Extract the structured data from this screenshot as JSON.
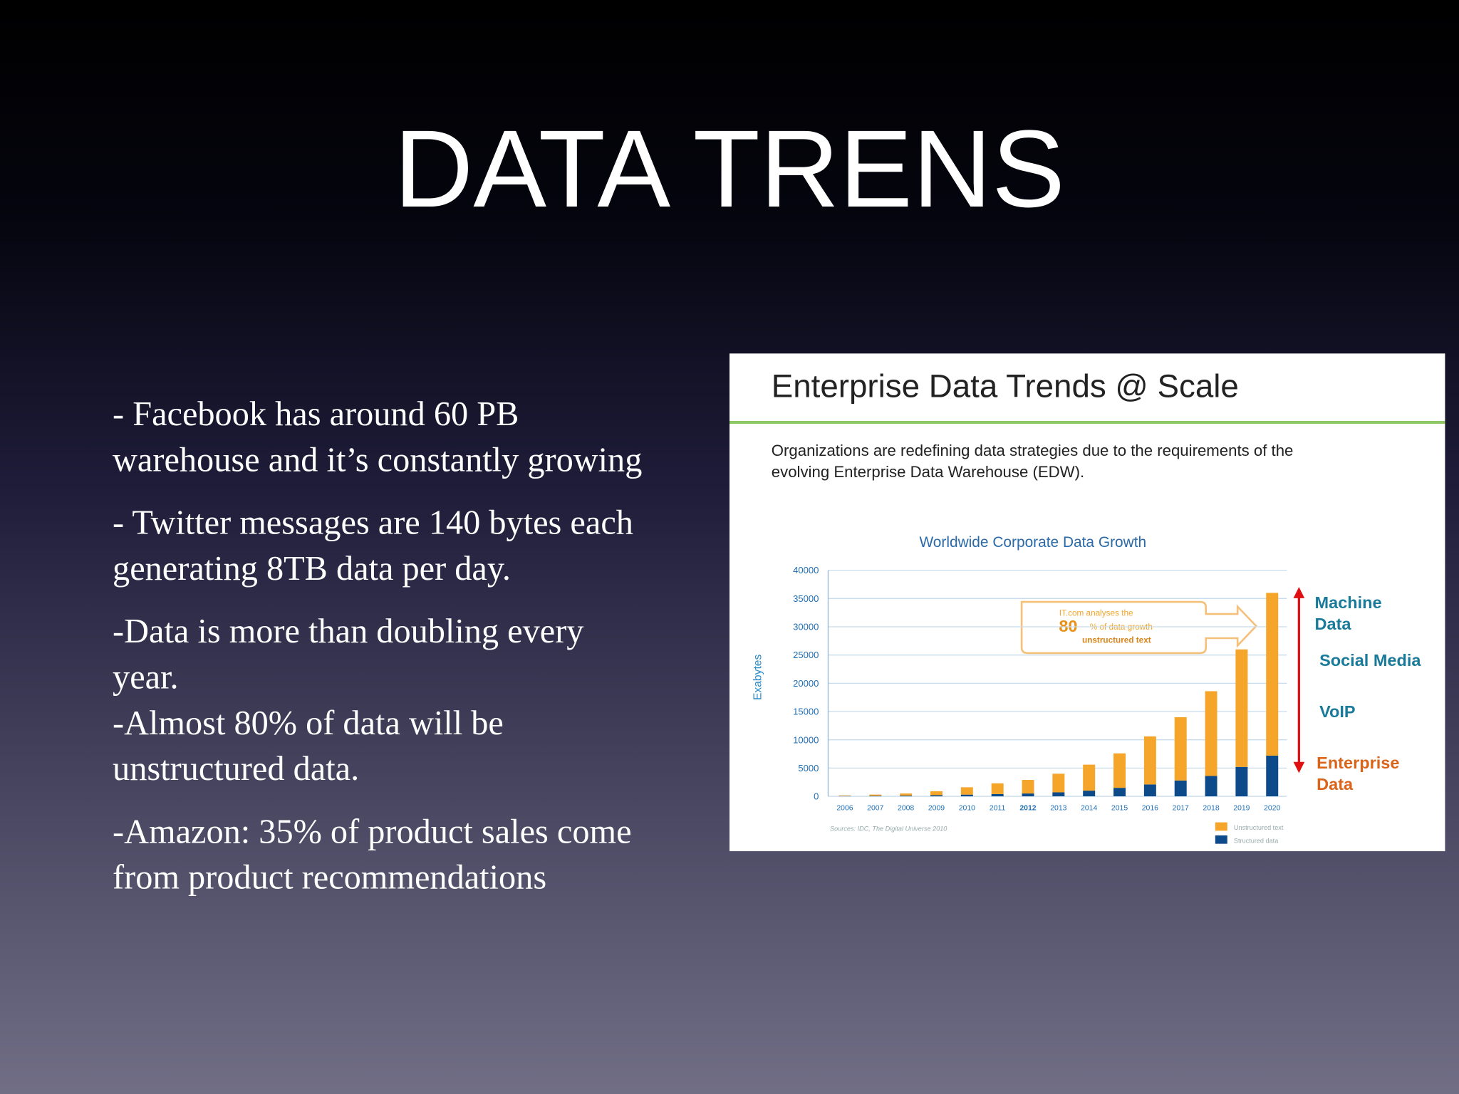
{
  "title": "DATA TRENS",
  "bullets": [
    [
      "- Facebook has around 60 PB",
      "warehouse and it’s constantly growing"
    ],
    [
      "- Twitter messages are 140 bytes each",
      "generating 8TB data per day."
    ],
    [
      "-Data is more than doubling every",
      "year.",
      "-Almost 80% of data will be",
      "unstructured data."
    ],
    [
      "-Amazon: 35% of product sales come",
      "from product recommendations"
    ]
  ],
  "figure": {
    "heading": "Enterprise Data Trends @ Scale",
    "description": [
      "Organizations are redefining data strategies due to the requirements of the",
      "evolving Enterprise Data Warehouse (EDW)."
    ],
    "annotation": [
      "IT.com analyses the",
      "80",
      "% of data growth",
      "unstructured text"
    ],
    "side_labels": [
      [
        "Machine",
        "Data"
      ],
      [
        "Social Media"
      ],
      [
        "VoIP"
      ],
      [
        "Enterprise",
        "Data"
      ]
    ]
  },
  "chart_data": {
    "type": "stacked-bar",
    "title": "Worldwide Corporate Data Growth",
    "y_label": "Exabytes",
    "source": "Sources: IDC, The Digital Universe 2010",
    "categories": [
      "2006",
      "2007",
      "2008",
      "2009",
      "2010",
      "2011",
      "2012",
      "2013",
      "2014",
      "2015",
      "2016",
      "2017",
      "2018",
      "2019",
      "2020"
    ],
    "series": [
      {
        "name": "Structured data",
        "color": "#0d4a8a",
        "values": [
          50,
          80,
          120,
          200,
          300,
          400,
          500,
          700,
          1000,
          1500,
          2100,
          2800,
          3600,
          5200,
          7200
        ]
      },
      {
        "name": "Unstructured text",
        "color": "#f4a52a",
        "values": [
          100,
          220,
          380,
          700,
          1300,
          1900,
          2400,
          3300,
          4600,
          6100,
          8500,
          11200,
          15000,
          20800,
          28800
        ]
      }
    ],
    "ylim": [
      0,
      40000
    ],
    "yticks": [
      0,
      5000,
      10000,
      15000,
      20000,
      25000,
      30000,
      35000,
      40000
    ],
    "grid": true
  }
}
